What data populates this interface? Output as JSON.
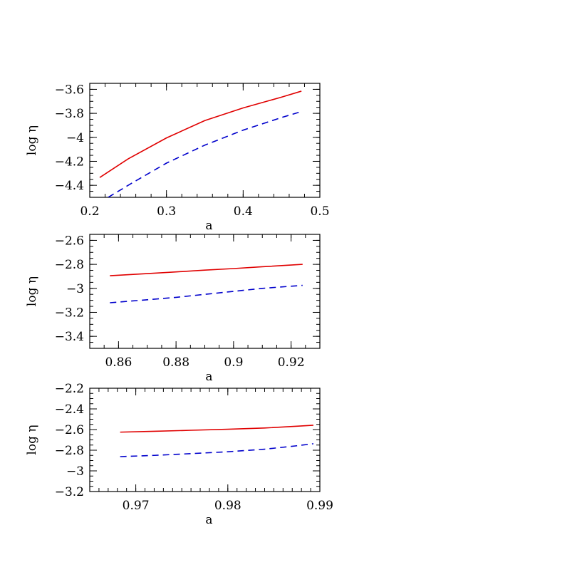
{
  "chart_data": [
    {
      "type": "line",
      "xlabel": "a",
      "ylabel": "log η",
      "xlim": [
        0.2,
        0.5
      ],
      "ylim": [
        -4.5,
        -3.55
      ],
      "x_ticks": [
        0.2,
        0.3,
        0.4,
        0.5
      ],
      "x_tick_labels": [
        "0.2",
        "0.3",
        "0.4",
        "0.5"
      ],
      "y_ticks": [
        -4.4,
        -4.2,
        -4.0,
        -3.8,
        -3.6
      ],
      "y_tick_labels": [
        "-4.4",
        "-4.2",
        "-4",
        "-3.8",
        "-3.6"
      ],
      "x_minor_step": 0.02,
      "y_minor_step": 0.05,
      "series": [
        {
          "style": "solid",
          "color": "#e00000",
          "x": [
            0.213,
            0.25,
            0.3,
            0.35,
            0.4,
            0.45,
            0.476
          ],
          "y": [
            -4.335,
            -4.18,
            -4.005,
            -3.86,
            -3.755,
            -3.665,
            -3.615
          ]
        },
        {
          "style": "dashed",
          "color": "#0000cc",
          "x": [
            0.224,
            0.25,
            0.3,
            0.35,
            0.4,
            0.45,
            0.476
          ],
          "y": [
            -4.5,
            -4.4,
            -4.215,
            -4.065,
            -3.94,
            -3.835,
            -3.785
          ]
        }
      ]
    },
    {
      "type": "line",
      "xlabel": "a",
      "ylabel": "log η",
      "xlim": [
        0.85,
        0.93
      ],
      "ylim": [
        -3.5,
        -2.55
      ],
      "x_ticks": [
        0.86,
        0.88,
        0.9,
        0.92
      ],
      "x_tick_labels": [
        "0.86",
        "0.88",
        "0.9",
        "0.92"
      ],
      "y_ticks": [
        -3.4,
        -3.2,
        -3.0,
        -2.8,
        -2.6
      ],
      "y_tick_labels": [
        "-3.4",
        "-3.2",
        "-3",
        "-2.8",
        "-2.6"
      ],
      "x_minor_step": 0.005,
      "y_minor_step": 0.05,
      "series": [
        {
          "style": "solid",
          "color": "#e00000",
          "x": [
            0.857,
            0.87,
            0.88,
            0.89,
            0.9,
            0.91,
            0.924
          ],
          "y": [
            -2.895,
            -2.877,
            -2.863,
            -2.848,
            -2.835,
            -2.82,
            -2.8
          ]
        },
        {
          "style": "dashed",
          "color": "#0000cc",
          "x": [
            0.857,
            0.87,
            0.88,
            0.89,
            0.9,
            0.91,
            0.924
          ],
          "y": [
            -3.12,
            -3.095,
            -3.075,
            -3.05,
            -3.025,
            -3.0,
            -2.975
          ]
        }
      ]
    },
    {
      "type": "line",
      "xlabel": "a",
      "ylabel": "log η",
      "xlim": [
        0.965,
        0.99
      ],
      "ylim": [
        -3.2,
        -2.2
      ],
      "x_ticks": [
        0.97,
        0.98,
        0.99
      ],
      "x_tick_labels": [
        "0.97",
        "0.98",
        "0.99"
      ],
      "y_ticks": [
        -3.2,
        -3.0,
        -2.8,
        -2.6,
        -2.4,
        -2.2
      ],
      "y_tick_labels": [
        "-3.2",
        "-3",
        "-2.8",
        "-2.6",
        "-2.4",
        "-2.2"
      ],
      "x_minor_step": 0.001,
      "y_minor_step": 0.05,
      "series": [
        {
          "style": "solid",
          "color": "#e00000",
          "x": [
            0.9683,
            0.972,
            0.976,
            0.98,
            0.984,
            0.9875,
            0.9893
          ],
          "y": [
            -2.625,
            -2.617,
            -2.607,
            -2.597,
            -2.585,
            -2.568,
            -2.558
          ]
        },
        {
          "style": "dashed",
          "color": "#0000cc",
          "x": [
            0.9683,
            0.972,
            0.976,
            0.98,
            0.984,
            0.9875,
            0.9893
          ],
          "y": [
            -2.862,
            -2.85,
            -2.833,
            -2.815,
            -2.79,
            -2.757,
            -2.737
          ]
        }
      ]
    }
  ]
}
